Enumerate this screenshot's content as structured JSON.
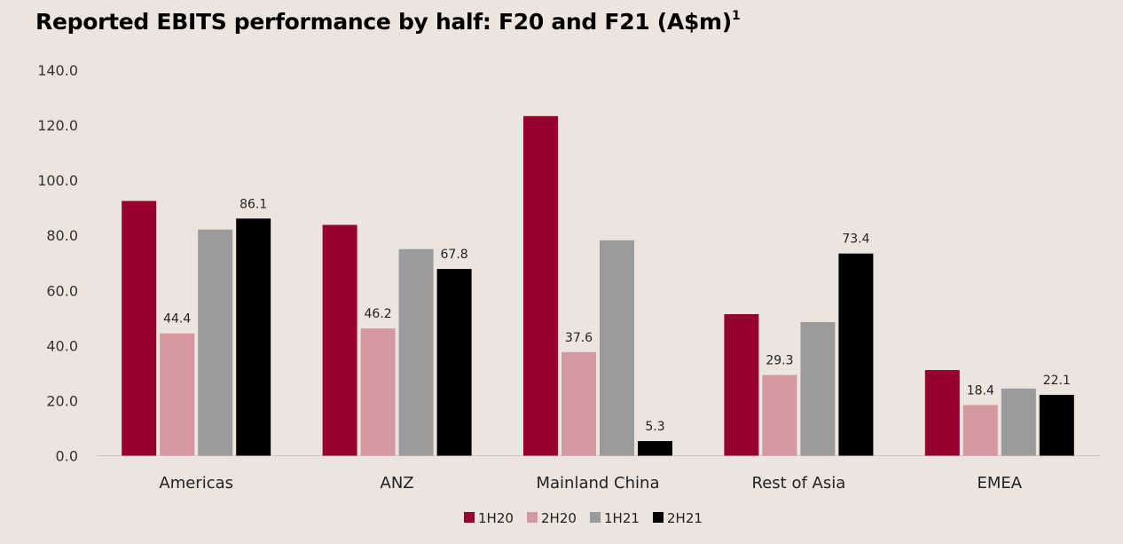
{
  "chart_data": {
    "type": "bar",
    "title": "Reported EBITS performance by half: F20 and F21 (A$m)",
    "title_superscript": "1",
    "categories": [
      "Americas",
      "ANZ",
      "Mainland China",
      "Rest of Asia",
      "EMEA"
    ],
    "series": [
      {
        "name": "1H20",
        "color": "#98002e",
        "values": [
          92.5,
          83.8,
          123.3,
          51.4,
          31.1
        ],
        "labels": [
          "",
          "",
          "",
          "",
          ""
        ]
      },
      {
        "name": "2H20",
        "color": "#d4989f",
        "values": [
          44.4,
          46.2,
          37.6,
          29.3,
          18.4
        ],
        "labels": [
          "44.4",
          "46.2",
          "37.6",
          "29.3",
          "18.4"
        ]
      },
      {
        "name": "1H21",
        "color": "#9b9b9b",
        "values": [
          82.1,
          75.0,
          78.2,
          48.5,
          24.4
        ],
        "labels": [
          "",
          "",
          "",
          "",
          ""
        ]
      },
      {
        "name": "2H21",
        "color": "#000000",
        "values": [
          86.1,
          67.8,
          5.3,
          73.4,
          22.1
        ],
        "labels": [
          "86.1",
          "67.8",
          "5.3",
          "73.4",
          "22.1"
        ]
      }
    ],
    "yticks": [
      "0.0",
      "20.0",
      "40.0",
      "60.0",
      "80.0",
      "100.0",
      "120.0",
      "140.0"
    ],
    "ylim": [
      0,
      140
    ],
    "grid": false,
    "legend": "bottom"
  }
}
